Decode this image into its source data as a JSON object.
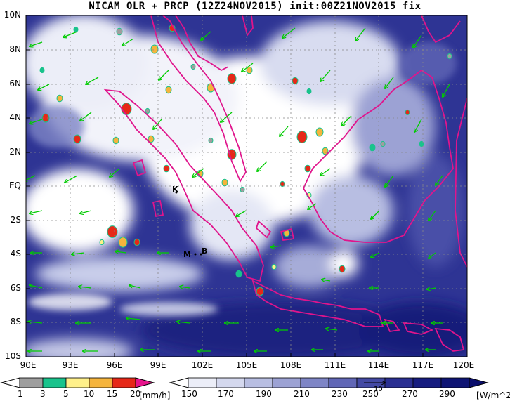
{
  "title": "NICAM OLR + PRCP (12Z24NOV2015) init:00Z21NOV2015 fix",
  "lat_labels": [
    "10N",
    "8N",
    "6N",
    "4N",
    "2N",
    "EQ",
    "2S",
    "4S",
    "6S",
    "8S",
    "10S"
  ],
  "lon_labels": [
    "90E",
    "93E",
    "96E",
    "99E",
    "102E",
    "105E",
    "108E",
    "111E",
    "114E",
    "117E",
    "120E"
  ],
  "stations": [
    {
      "label": "K"
    },
    {
      "label": "M"
    },
    {
      "label": "B"
    }
  ],
  "precip_colorbar": {
    "ticks": [
      "1",
      "3",
      "5",
      "10",
      "15",
      "20"
    ],
    "unit": "[mm/h]",
    "colors": [
      "#9e9e9e",
      "#19c38c",
      "#fff08a",
      "#f5b43c",
      "#e62818",
      "#e6148c"
    ]
  },
  "olr_colorbar": {
    "ticks": [
      "150",
      "170",
      "190",
      "210",
      "230",
      "250",
      "270",
      "290"
    ],
    "unit": "[W/m^2]",
    "colors": [
      "#ffffff",
      "#eceef8",
      "#d4d8ee",
      "#b8bee2",
      "#9ca2d4",
      "#7e85c6",
      "#6066b6",
      "#4349a4",
      "#2a2f92",
      "#161c80",
      "#0a0e6c"
    ]
  },
  "vector_ref_label": "10",
  "colors": {
    "coast": "#e0148c",
    "wind": "#00cc00",
    "olr_dark": "#1a2080",
    "olr_light": "#ffffff"
  }
}
